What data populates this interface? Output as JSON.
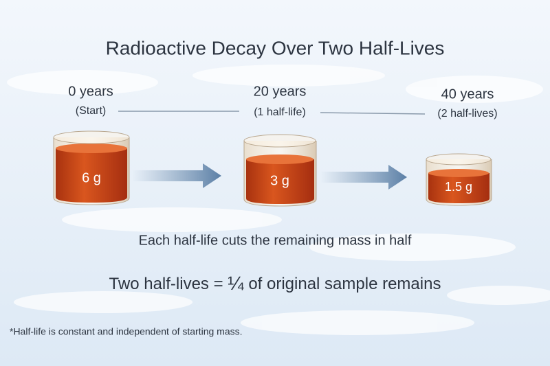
{
  "title": "Radioactive Decay Over Two Half-Lives",
  "stages": [
    {
      "time": "0 years",
      "note": "(Start)",
      "mass": "6 g"
    },
    {
      "time": "20 years",
      "note": "(1 half-life)",
      "mass": "3 g"
    },
    {
      "time": "40 years",
      "note": "(2 half-lives)",
      "mass": "1.5 g"
    }
  ],
  "caption": "Each half-life cuts the remaining mass in half",
  "conclusion": {
    "before": "Two half-lives =",
    "fraction": "¼",
    "after": "of original sample remains"
  },
  "footnote": "*Half-life is constant and independent of starting mass."
}
